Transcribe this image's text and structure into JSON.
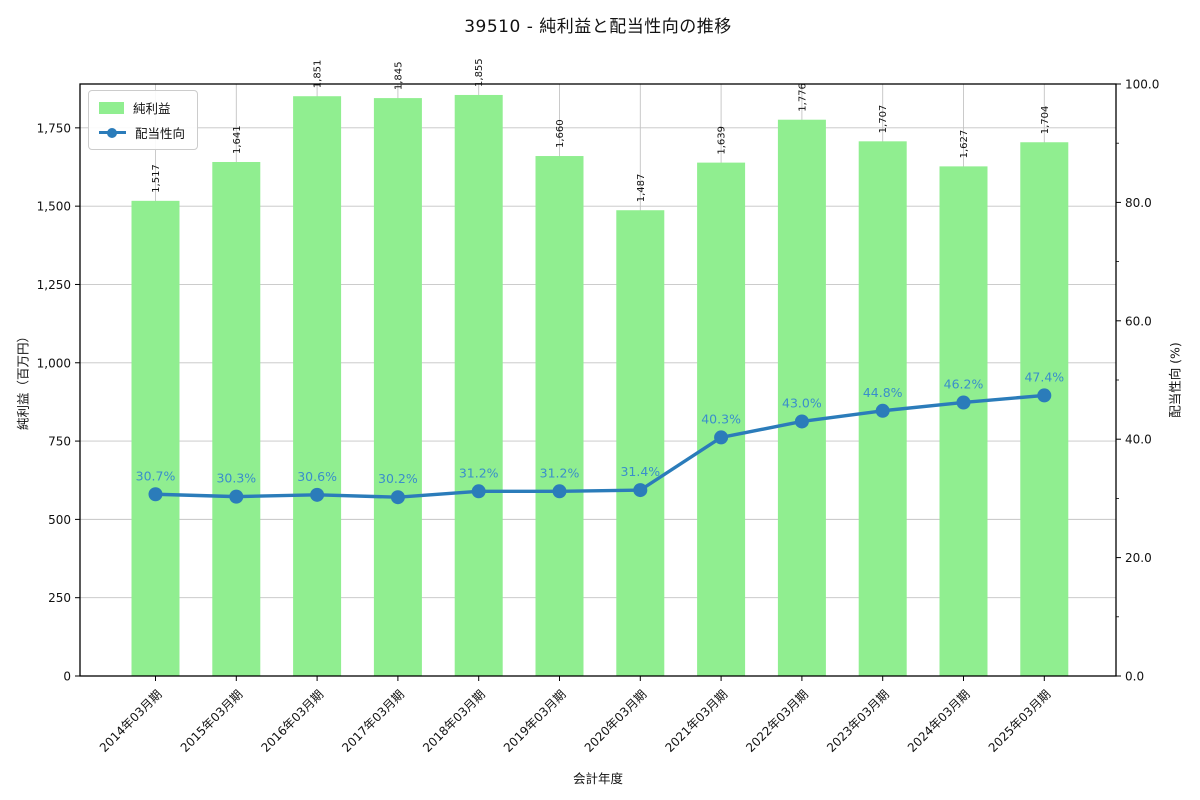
{
  "chart_data": {
    "type": "bar",
    "title": "39510 - 純利益と配当性向の推移",
    "xlabel": "会計年度",
    "ylabel_left": "純利益（百万円）",
    "ylabel_right": "配当性向 (%)",
    "categories": [
      "2014年03月期",
      "2015年03月期",
      "2016年03月期",
      "2017年03月期",
      "2018年03月期",
      "2019年03月期",
      "2020年03月期",
      "2021年03月期",
      "2022年03月期",
      "2023年03月期",
      "2024年03月期",
      "2025年03月期"
    ],
    "series": [
      {
        "name": "純利益",
        "kind": "bar",
        "axis": "left",
        "color": "#90ee90",
        "values": [
          1517,
          1641,
          1851,
          1845,
          1855,
          1660,
          1487,
          1639,
          1776,
          1707,
          1627,
          1704
        ],
        "value_labels": [
          "1,517",
          "1,641",
          "1,851",
          "1,845",
          "1,855",
          "1,660",
          "1,487",
          "1,639",
          "1,776",
          "1,707",
          "1,627",
          "1,704"
        ],
        "label_color": "#111111"
      },
      {
        "name": "配当性向",
        "kind": "line",
        "axis": "right",
        "color": "#2b7cba",
        "values": [
          30.7,
          30.3,
          30.6,
          30.2,
          31.2,
          31.2,
          31.4,
          40.3,
          43.0,
          44.8,
          46.2,
          47.4
        ],
        "value_labels": [
          "30.7%",
          "30.3%",
          "30.6%",
          "30.2%",
          "31.2%",
          "31.2%",
          "31.4%",
          "40.3%",
          "43.0%",
          "44.8%",
          "46.2%",
          "47.4%"
        ],
        "label_color": "#3a8ecb"
      }
    ],
    "left_axis": {
      "lim": [
        0,
        1890
      ],
      "tick_values": [
        0,
        250,
        500,
        750,
        1000,
        1250,
        1500,
        1750
      ],
      "tick_labels": [
        "0",
        "250",
        "500",
        "750",
        "1,000",
        "1,250",
        "1,500",
        "1,750"
      ]
    },
    "right_axis": {
      "lim": [
        0,
        100
      ],
      "tick_values": [
        0,
        20,
        40,
        60,
        80,
        100
      ],
      "tick_labels": [
        "0.0",
        "20.0",
        "40.0",
        "60.0",
        "80.0",
        "100.0"
      ],
      "minor_tick_values": [
        10,
        30,
        50,
        70,
        90
      ]
    },
    "grid": true,
    "grid_color": "#c4c4c4",
    "legend_position": "upper-left"
  }
}
